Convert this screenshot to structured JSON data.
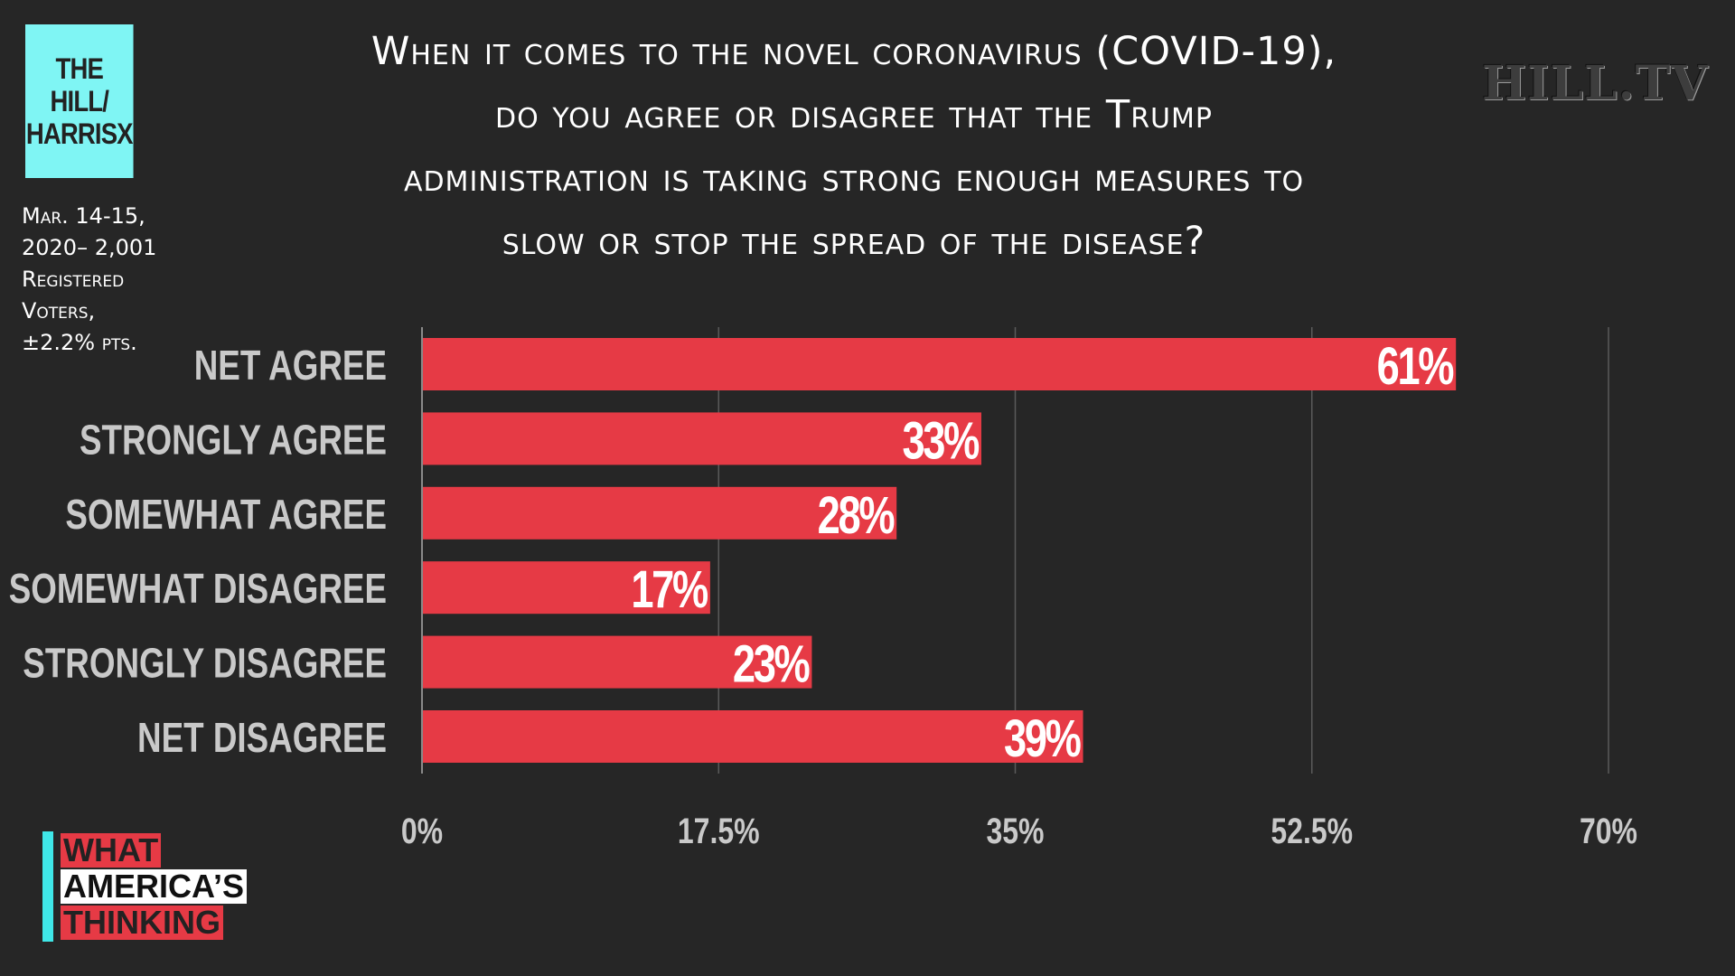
{
  "logo": {
    "line1": "THE HILL/",
    "line2": "HARRISX"
  },
  "meta": {
    "line1": "Mar. 14-15,",
    "line2": "2020– 2,001",
    "line3": "Registered",
    "line4": "Voters,",
    "line5": "±2.2% pts."
  },
  "question": {
    "line1": "When it comes to the novel coronavirus (COVID-19),",
    "line2": "do you agree or disagree that the Trump",
    "line3": "administration is taking strong enough measures to",
    "line4": "slow or stop the spread of the disease?"
  },
  "watermark": "HILL.TV",
  "brand": {
    "line1": "WHAT",
    "line2": "AMERICA’S",
    "line3": "THINKING"
  },
  "colors": {
    "background": "#262626",
    "bar": "#e63a45",
    "logo_bg": "#7ff5f4",
    "category_label": "#c9c9c9",
    "grid": "#5a5a5a"
  },
  "chart_data": {
    "type": "bar",
    "orientation": "horizontal",
    "categories": [
      "NET AGREE",
      "STRONGLY AGREE",
      "SOMEWHAT AGREE",
      "SOMEWHAT DISAGREE",
      "STRONGLY DISAGREE",
      "NET DISAGREE"
    ],
    "values": [
      61,
      33,
      28,
      17,
      23,
      39
    ],
    "value_labels": [
      "61%",
      "33%",
      "28%",
      "17%",
      "23%",
      "39%"
    ],
    "xlim": [
      0,
      70
    ],
    "xticks": [
      0,
      17.5,
      35,
      52.5,
      70
    ],
    "xtick_labels": [
      "0%",
      "17.5%",
      "35%",
      "52.5%",
      "70%"
    ],
    "grid": true,
    "legend": "none"
  }
}
